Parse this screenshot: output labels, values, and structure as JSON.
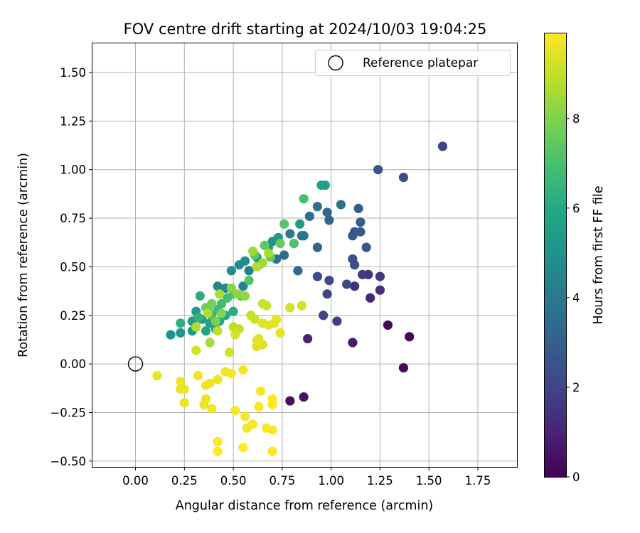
{
  "chart_data": {
    "type": "scatter",
    "title": "FOV centre drift starting at 2024/10/03 19:04:25",
    "xlabel": "Angular distance from reference (arcmin)",
    "ylabel": "Rotation from reference (arcmin)",
    "xlim": [
      -0.22,
      1.95
    ],
    "ylim": [
      -0.53,
      1.65
    ],
    "xticks": [
      0.0,
      0.25,
      0.5,
      0.75,
      1.0,
      1.25,
      1.5,
      1.75
    ],
    "xtick_labels": [
      "0.00",
      "0.25",
      "0.50",
      "0.75",
      "1.00",
      "1.25",
      "1.50",
      "1.75"
    ],
    "yticks": [
      -0.5,
      -0.25,
      0.0,
      0.25,
      0.5,
      0.75,
      1.0,
      1.25,
      1.5
    ],
    "ytick_labels": [
      "−0.50",
      "−0.25",
      "0.00",
      "0.25",
      "0.50",
      "0.75",
      "1.00",
      "1.25",
      "1.50"
    ],
    "grid": true,
    "legend": {
      "placement": "top-right",
      "label": "Reference platepar",
      "marker": "open-circle"
    },
    "reference_point": {
      "x": 0.0,
      "y": 0.0
    },
    "colorbar": {
      "label": "Hours from first FF file",
      "colormap": "viridis",
      "range": [
        0,
        9.9
      ],
      "ticks": [
        0,
        2,
        4,
        6,
        8
      ],
      "tick_labels": [
        "0",
        "2",
        "4",
        "6",
        "8"
      ]
    },
    "points": [
      {
        "x": 1.4,
        "y": 0.14,
        "c": 0.1
      },
      {
        "x": 1.29,
        "y": 0.2,
        "c": 0.2
      },
      {
        "x": 1.37,
        "y": -0.02,
        "c": 0.3
      },
      {
        "x": 0.79,
        "y": -0.19,
        "c": 0.4
      },
      {
        "x": 0.86,
        "y": -0.17,
        "c": 0.5
      },
      {
        "x": 1.11,
        "y": 0.11,
        "c": 0.7
      },
      {
        "x": 0.88,
        "y": 0.13,
        "c": 1.0
      },
      {
        "x": 1.2,
        "y": 0.34,
        "c": 1.1
      },
      {
        "x": 1.25,
        "y": 0.38,
        "c": 1.3
      },
      {
        "x": 1.12,
        "y": 0.4,
        "c": 1.4
      },
      {
        "x": 1.19,
        "y": 0.46,
        "c": 1.5
      },
      {
        "x": 1.25,
        "y": 0.45,
        "c": 1.6
      },
      {
        "x": 1.16,
        "y": 0.46,
        "c": 1.7
      },
      {
        "x": 1.03,
        "y": 0.22,
        "c": 1.8
      },
      {
        "x": 0.96,
        "y": 0.25,
        "c": 1.9
      },
      {
        "x": 0.98,
        "y": 0.36,
        "c": 2.0
      },
      {
        "x": 1.08,
        "y": 0.41,
        "c": 2.1
      },
      {
        "x": 0.99,
        "y": 0.43,
        "c": 2.2
      },
      {
        "x": 0.93,
        "y": 0.45,
        "c": 2.3
      },
      {
        "x": 1.12,
        "y": 0.51,
        "c": 2.4
      },
      {
        "x": 1.11,
        "y": 0.54,
        "c": 2.5
      },
      {
        "x": 1.18,
        "y": 0.6,
        "c": 2.6
      },
      {
        "x": 1.11,
        "y": 0.66,
        "c": 2.7
      },
      {
        "x": 1.12,
        "y": 0.68,
        "c": 2.7
      },
      {
        "x": 1.15,
        "y": 0.68,
        "c": 2.8
      },
      {
        "x": 1.15,
        "y": 0.73,
        "c": 2.9
      },
      {
        "x": 1.14,
        "y": 0.8,
        "c": 3.0
      },
      {
        "x": 1.57,
        "y": 1.12,
        "c": 2.0
      },
      {
        "x": 1.24,
        "y": 1.0,
        "c": 2.6
      },
      {
        "x": 1.37,
        "y": 0.96,
        "c": 2.3
      },
      {
        "x": 0.99,
        "y": 0.74,
        "c": 3.2
      },
      {
        "x": 0.98,
        "y": 0.78,
        "c": 3.3
      },
      {
        "x": 0.93,
        "y": 0.81,
        "c": 3.6
      },
      {
        "x": 1.05,
        "y": 0.82,
        "c": 3.8
      },
      {
        "x": 0.89,
        "y": 0.76,
        "c": 3.5
      },
      {
        "x": 0.93,
        "y": 0.6,
        "c": 3.2
      },
      {
        "x": 0.76,
        "y": 0.56,
        "c": 3.4
      },
      {
        "x": 0.72,
        "y": 0.54,
        "c": 3.6
      },
      {
        "x": 0.85,
        "y": 0.66,
        "c": 3.7
      },
      {
        "x": 0.86,
        "y": 0.66,
        "c": 3.9
      },
      {
        "x": 0.79,
        "y": 0.67,
        "c": 4.0
      },
      {
        "x": 0.83,
        "y": 0.48,
        "c": 3.4
      },
      {
        "x": 0.63,
        "y": 0.51,
        "c": 4.2
      },
      {
        "x": 0.58,
        "y": 0.48,
        "c": 4.3
      },
      {
        "x": 0.55,
        "y": 0.4,
        "c": 4.4
      },
      {
        "x": 0.42,
        "y": 0.4,
        "c": 4.5
      },
      {
        "x": 0.46,
        "y": 0.39,
        "c": 4.6
      },
      {
        "x": 0.49,
        "y": 0.48,
        "c": 4.7
      },
      {
        "x": 0.53,
        "y": 0.51,
        "c": 4.8
      },
      {
        "x": 0.56,
        "y": 0.53,
        "c": 4.9
      },
      {
        "x": 0.62,
        "y": 0.55,
        "c": 5.0
      },
      {
        "x": 0.7,
        "y": 0.63,
        "c": 5.1
      },
      {
        "x": 0.68,
        "y": 0.6,
        "c": 5.2
      },
      {
        "x": 0.73,
        "y": 0.65,
        "c": 5.3
      },
      {
        "x": 0.84,
        "y": 0.72,
        "c": 5.4
      },
      {
        "x": 0.95,
        "y": 0.92,
        "c": 5.5
      },
      {
        "x": 0.97,
        "y": 0.92,
        "c": 5.6
      },
      {
        "x": 0.18,
        "y": 0.15,
        "c": 5.0
      },
      {
        "x": 0.23,
        "y": 0.16,
        "c": 5.1
      },
      {
        "x": 0.29,
        "y": 0.17,
        "c": 5.2
      },
      {
        "x": 0.31,
        "y": 0.27,
        "c": 5.3
      },
      {
        "x": 0.29,
        "y": 0.22,
        "c": 5.4
      },
      {
        "x": 0.34,
        "y": 0.23,
        "c": 5.5
      },
      {
        "x": 0.38,
        "y": 0.21,
        "c": 5.6
      },
      {
        "x": 0.36,
        "y": 0.17,
        "c": 5.7
      },
      {
        "x": 0.41,
        "y": 0.18,
        "c": 5.8
      },
      {
        "x": 0.43,
        "y": 0.22,
        "c": 5.9
      },
      {
        "x": 0.46,
        "y": 0.25,
        "c": 6.0
      },
      {
        "x": 0.5,
        "y": 0.27,
        "c": 6.1
      },
      {
        "x": 0.33,
        "y": 0.35,
        "c": 6.2
      },
      {
        "x": 0.23,
        "y": 0.21,
        "c": 6.3
      },
      {
        "x": 0.32,
        "y": 0.24,
        "c": 6.4
      },
      {
        "x": 0.37,
        "y": 0.27,
        "c": 6.5
      },
      {
        "x": 0.39,
        "y": 0.25,
        "c": 6.6
      },
      {
        "x": 0.42,
        "y": 0.28,
        "c": 6.7
      },
      {
        "x": 0.44,
        "y": 0.31,
        "c": 6.8
      },
      {
        "x": 0.47,
        "y": 0.34,
        "c": 6.9
      },
      {
        "x": 0.5,
        "y": 0.36,
        "c": 7.0
      },
      {
        "x": 0.54,
        "y": 0.35,
        "c": 7.1
      },
      {
        "x": 0.58,
        "y": 0.43,
        "c": 7.2
      },
      {
        "x": 0.61,
        "y": 0.56,
        "c": 7.3
      },
      {
        "x": 0.66,
        "y": 0.61,
        "c": 7.4
      },
      {
        "x": 0.69,
        "y": 0.55,
        "c": 7.5
      },
      {
        "x": 0.74,
        "y": 0.62,
        "c": 7.6
      },
      {
        "x": 0.76,
        "y": 0.72,
        "c": 7.2
      },
      {
        "x": 0.86,
        "y": 0.85,
        "c": 7.0
      },
      {
        "x": 0.81,
        "y": 0.62,
        "c": 7.1
      },
      {
        "x": 0.36,
        "y": 0.29,
        "c": 7.7
      },
      {
        "x": 0.39,
        "y": 0.31,
        "c": 7.8
      },
      {
        "x": 0.41,
        "y": 0.22,
        "c": 7.9
      },
      {
        "x": 0.44,
        "y": 0.26,
        "c": 8.0
      },
      {
        "x": 0.49,
        "y": 0.39,
        "c": 8.1
      },
      {
        "x": 0.52,
        "y": 0.36,
        "c": 8.2
      },
      {
        "x": 0.56,
        "y": 0.35,
        "c": 8.3
      },
      {
        "x": 0.6,
        "y": 0.58,
        "c": 8.4
      },
      {
        "x": 0.65,
        "y": 0.52,
        "c": 8.5
      },
      {
        "x": 0.68,
        "y": 0.57,
        "c": 8.6
      },
      {
        "x": 0.62,
        "y": 0.5,
        "c": 8.7
      },
      {
        "x": 0.43,
        "y": 0.36,
        "c": 8.6
      },
      {
        "x": 0.38,
        "y": 0.11,
        "c": 8.6
      },
      {
        "x": 0.31,
        "y": 0.19,
        "c": 8.7
      },
      {
        "x": 0.37,
        "y": 0.26,
        "c": 8.8
      },
      {
        "x": 0.42,
        "y": 0.17,
        "c": 8.9
      },
      {
        "x": 0.5,
        "y": 0.19,
        "c": 8.9
      },
      {
        "x": 0.53,
        "y": 0.18,
        "c": 9.0
      },
      {
        "x": 0.59,
        "y": 0.25,
        "c": 9.0
      },
      {
        "x": 0.61,
        "y": 0.23,
        "c": 9.1
      },
      {
        "x": 0.65,
        "y": 0.31,
        "c": 9.1
      },
      {
        "x": 0.67,
        "y": 0.3,
        "c": 9.1
      },
      {
        "x": 0.79,
        "y": 0.29,
        "c": 9.2
      },
      {
        "x": 0.85,
        "y": 0.3,
        "c": 9.2
      },
      {
        "x": 0.48,
        "y": 0.06,
        "c": 9.2
      },
      {
        "x": 0.31,
        "y": 0.07,
        "c": 9.3
      },
      {
        "x": 0.51,
        "y": 0.15,
        "c": 9.3
      },
      {
        "x": 0.62,
        "y": 0.09,
        "c": 9.3
      },
      {
        "x": 0.63,
        "y": 0.13,
        "c": 9.4
      },
      {
        "x": 0.65,
        "y": 0.1,
        "c": 9.4
      },
      {
        "x": 0.65,
        "y": 0.21,
        "c": 9.4
      },
      {
        "x": 0.68,
        "y": 0.2,
        "c": 9.5
      },
      {
        "x": 0.71,
        "y": 0.21,
        "c": 9.5
      },
      {
        "x": 0.72,
        "y": 0.23,
        "c": 9.5
      },
      {
        "x": 0.74,
        "y": 0.16,
        "c": 9.5
      },
      {
        "x": 0.62,
        "y": 0.12,
        "c": 9.5
      },
      {
        "x": 0.11,
        "y": -0.06,
        "c": 9.6
      },
      {
        "x": 0.23,
        "y": -0.09,
        "c": 9.6
      },
      {
        "x": 0.25,
        "y": -0.13,
        "c": 9.6
      },
      {
        "x": 0.23,
        "y": -0.13,
        "c": 9.6
      },
      {
        "x": 0.25,
        "y": -0.2,
        "c": 9.6
      },
      {
        "x": 0.32,
        "y": -0.06,
        "c": 9.7
      },
      {
        "x": 0.36,
        "y": -0.11,
        "c": 9.7
      },
      {
        "x": 0.38,
        "y": -0.1,
        "c": 9.7
      },
      {
        "x": 0.42,
        "y": -0.08,
        "c": 9.7
      },
      {
        "x": 0.36,
        "y": -0.18,
        "c": 9.7
      },
      {
        "x": 0.35,
        "y": -0.21,
        "c": 9.7
      },
      {
        "x": 0.39,
        "y": -0.23,
        "c": 9.7
      },
      {
        "x": 0.46,
        "y": -0.04,
        "c": 9.7
      },
      {
        "x": 0.49,
        "y": -0.05,
        "c": 9.8
      },
      {
        "x": 0.55,
        "y": -0.03,
        "c": 9.8
      },
      {
        "x": 0.51,
        "y": -0.24,
        "c": 9.8
      },
      {
        "x": 0.56,
        "y": -0.27,
        "c": 9.8
      },
      {
        "x": 0.57,
        "y": -0.33,
        "c": 9.8
      },
      {
        "x": 0.6,
        "y": -0.31,
        "c": 9.8
      },
      {
        "x": 0.63,
        "y": -0.22,
        "c": 9.8
      },
      {
        "x": 0.64,
        "y": -0.14,
        "c": 9.8
      },
      {
        "x": 0.67,
        "y": -0.33,
        "c": 9.9
      },
      {
        "x": 0.7,
        "y": -0.34,
        "c": 9.9
      },
      {
        "x": 0.7,
        "y": -0.18,
        "c": 9.9
      },
      {
        "x": 0.7,
        "y": -0.21,
        "c": 9.9
      },
      {
        "x": 0.42,
        "y": -0.4,
        "c": 9.9
      },
      {
        "x": 0.42,
        "y": -0.45,
        "c": 9.9
      },
      {
        "x": 0.55,
        "y": -0.43,
        "c": 9.9
      },
      {
        "x": 0.7,
        "y": -0.45,
        "c": 9.9
      }
    ]
  }
}
